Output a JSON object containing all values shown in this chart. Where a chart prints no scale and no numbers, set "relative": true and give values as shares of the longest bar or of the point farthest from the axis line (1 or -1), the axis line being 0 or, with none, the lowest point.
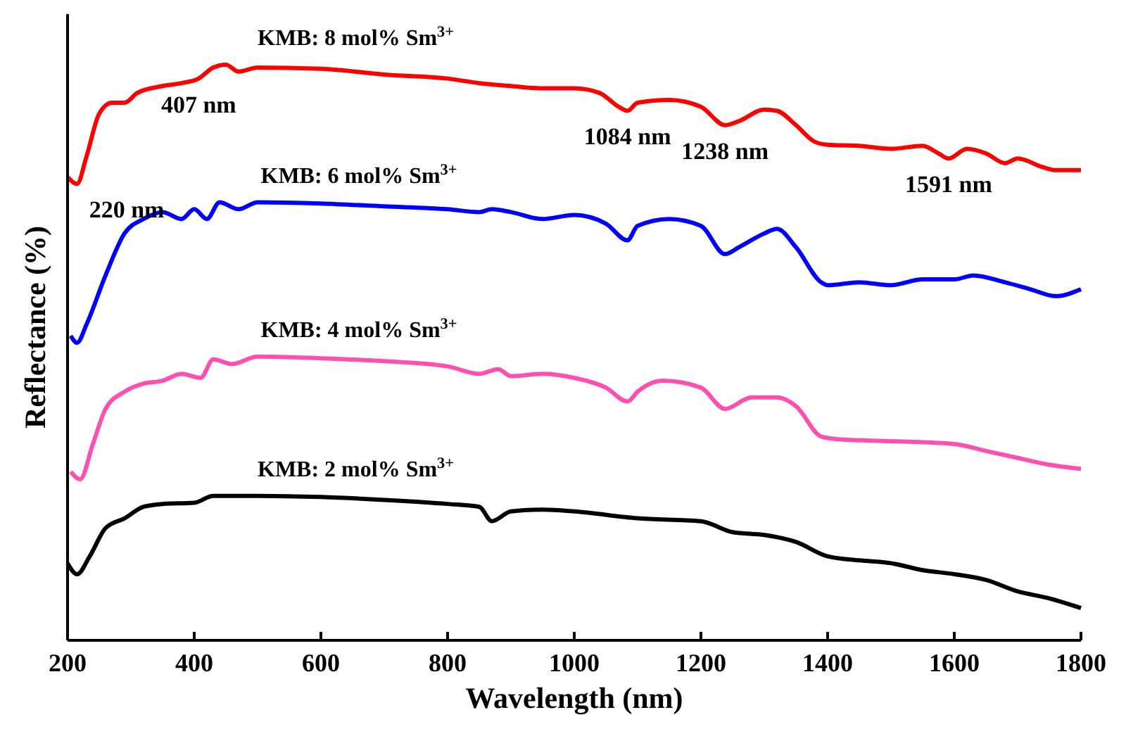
{
  "chart_data": {
    "type": "line",
    "relative": true,
    "xlabel": "Wavelength (nm)",
    "ylabel": "Reflectance (%)",
    "xlim": [
      200,
      1800
    ],
    "xticks": [
      200,
      400,
      600,
      800,
      1000,
      1200,
      1400,
      1600,
      1800
    ],
    "grid": false,
    "marker": "none",
    "line_style": "solid",
    "series": [
      {
        "name": "KMB: 8 mol% Sm$^{3+}$",
        "color": "#ff0000",
        "x": [
          200,
          215,
          230,
          250,
          270,
          290,
          310,
          350,
          380,
          407,
          430,
          450,
          470,
          500,
          600,
          700,
          800,
          850,
          900,
          950,
          1000,
          1040,
          1070,
          1084,
          1100,
          1150,
          1200,
          1238,
          1260,
          1300,
          1320,
          1350,
          1380,
          1400,
          1450,
          1500,
          1550,
          1575,
          1591,
          1620,
          1650,
          1680,
          1700,
          1740,
          1760,
          1800
        ],
        "values": [
          0.805,
          0.793,
          0.841,
          0.915,
          0.934,
          0.934,
          0.951,
          0.963,
          0.968,
          0.976,
          0.995,
          1,
          0.988,
          0.995,
          0.993,
          0.983,
          0.976,
          0.968,
          0.963,
          0.959,
          0.959,
          0.951,
          0.927,
          0.92,
          0.934,
          0.939,
          0.927,
          0.895,
          0.902,
          0.922,
          0.92,
          0.895,
          0.866,
          0.861,
          0.859,
          0.854,
          0.859,
          0.846,
          0.837,
          0.854,
          0.846,
          0.829,
          0.837,
          0.822,
          0.817,
          0.817
        ]
      },
      {
        "name": "KMB: 6 mol% Sm$^{3+}$",
        "color": "#0000ff",
        "x": [
          205,
          215,
          230,
          260,
          290,
          320,
          350,
          380,
          400,
          420,
          440,
          470,
          500,
          600,
          700,
          800,
          850,
          870,
          900,
          950,
          1000,
          1050,
          1084,
          1100,
          1150,
          1200,
          1238,
          1260,
          1300,
          1320,
          1350,
          1390,
          1400,
          1450,
          1500,
          1550,
          1600,
          1630,
          1680,
          1720,
          1760,
          1800
        ],
        "values": [
          0.529,
          0.517,
          0.549,
          0.634,
          0.707,
          0.732,
          0.744,
          0.732,
          0.749,
          0.732,
          0.761,
          0.749,
          0.761,
          0.759,
          0.754,
          0.749,
          0.744,
          0.749,
          0.744,
          0.732,
          0.739,
          0.724,
          0.695,
          0.72,
          0.732,
          0.72,
          0.671,
          0.683,
          0.707,
          0.715,
          0.683,
          0.622,
          0.617,
          0.622,
          0.617,
          0.627,
          0.627,
          0.634,
          0.622,
          0.61,
          0.598,
          0.61
        ]
      },
      {
        "name": "KMB: 4 mol% Sm$^{3+}$",
        "color": "#ff4fb0",
        "x": [
          205,
          220,
          240,
          260,
          290,
          320,
          350,
          380,
          410,
          430,
          460,
          500,
          600,
          700,
          800,
          850,
          880,
          900,
          950,
          1000,
          1050,
          1084,
          1100,
          1140,
          1200,
          1238,
          1280,
          1320,
          1350,
          1390,
          1420,
          1500,
          1600,
          1650,
          1700,
          1750,
          1800
        ],
        "values": [
          0.293,
          0.28,
          0.341,
          0.402,
          0.432,
          0.446,
          0.451,
          0.463,
          0.456,
          0.488,
          0.48,
          0.493,
          0.49,
          0.485,
          0.476,
          0.463,
          0.471,
          0.459,
          0.463,
          0.456,
          0.439,
          0.415,
          0.432,
          0.451,
          0.439,
          0.402,
          0.422,
          0.422,
          0.407,
          0.354,
          0.349,
          0.346,
          0.341,
          0.329,
          0.317,
          0.305,
          0.298
        ]
      },
      {
        "name": "KMB: 2 mol% Sm$^{3+}$",
        "color": "#000000",
        "x": [
          200,
          215,
          235,
          260,
          290,
          320,
          350,
          400,
          430,
          500,
          600,
          700,
          800,
          850,
          870,
          900,
          950,
          1000,
          1100,
          1200,
          1250,
          1300,
          1350,
          1400,
          1450,
          1500,
          1550,
          1600,
          1650,
          1700,
          1750,
          1800
        ],
        "values": [
          0.134,
          0.115,
          0.146,
          0.195,
          0.212,
          0.232,
          0.237,
          0.239,
          0.251,
          0.251,
          0.249,
          0.244,
          0.237,
          0.232,
          0.207,
          0.224,
          0.227,
          0.224,
          0.212,
          0.207,
          0.188,
          0.183,
          0.171,
          0.146,
          0.139,
          0.134,
          0.122,
          0.115,
          0.105,
          0.085,
          0.073,
          0.056
        ]
      }
    ],
    "annotations": [
      {
        "text": "407 nm",
        "x": 407,
        "y": 0.976
      },
      {
        "text": "220 nm",
        "x": 220,
        "y": 0.793
      },
      {
        "text": "1084 nm",
        "x": 1084,
        "y": 0.92
      },
      {
        "text": "1238 nm",
        "x": 1238,
        "y": 0.895
      },
      {
        "text": "1591 nm",
        "x": 1591,
        "y": 0.837
      }
    ]
  }
}
